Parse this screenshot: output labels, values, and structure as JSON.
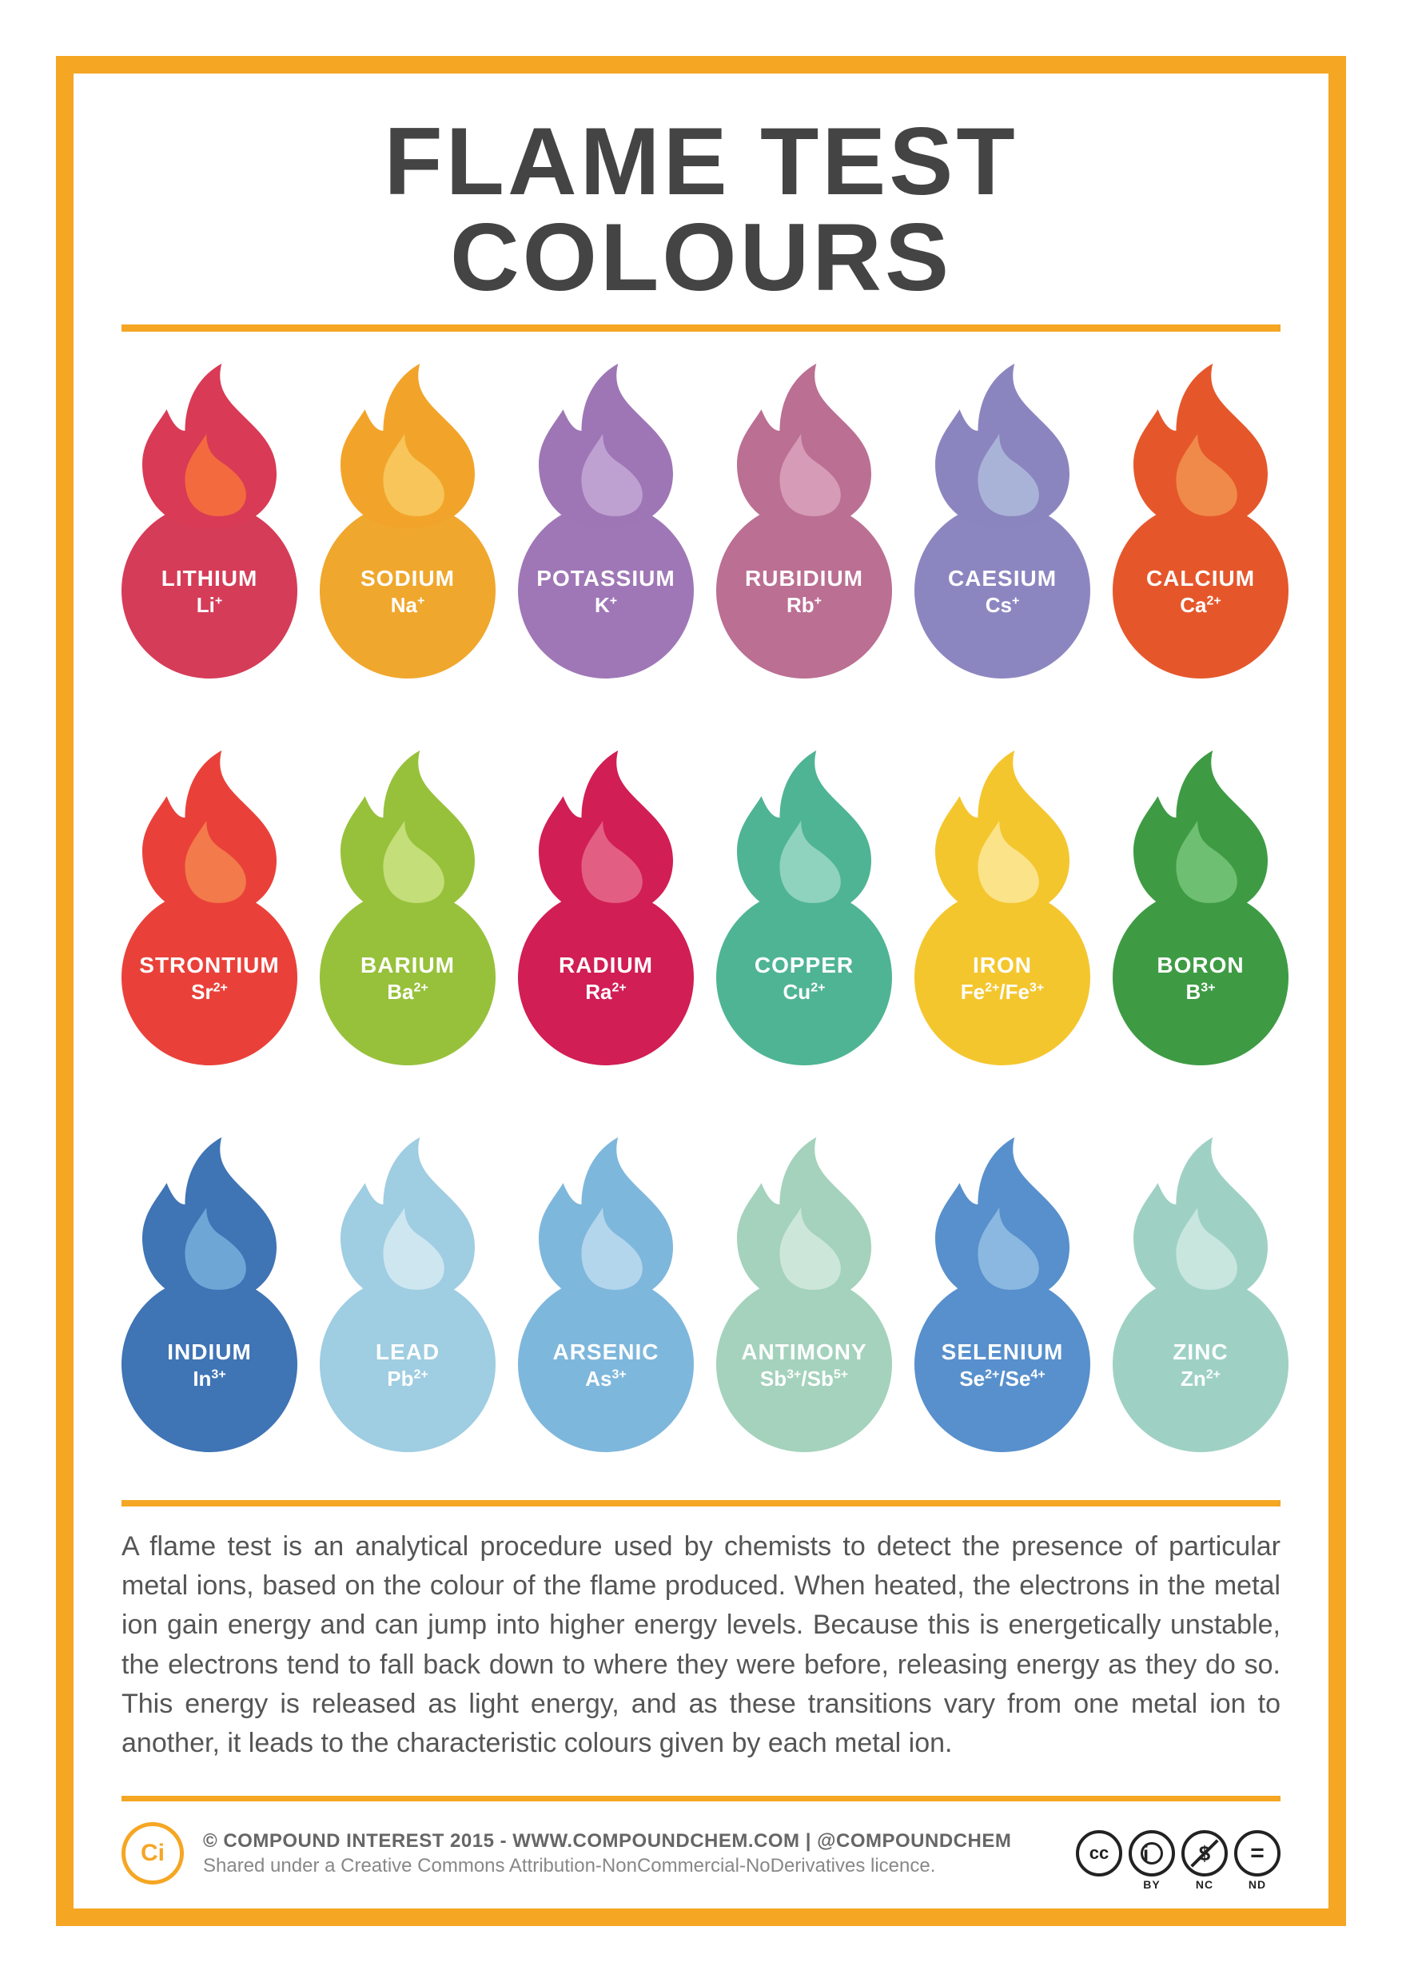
{
  "title": "FLAME TEST COLOURS",
  "border_color": "#f5a623",
  "rule_color": "#f5a623",
  "title_color": "#444444",
  "title_fontsize": 120,
  "grid": {
    "cols": 6,
    "rows": 3
  },
  "elements": [
    {
      "name": "LITHIUM",
      "ion_html": "Li<sup>+</sup>",
      "circle": "#d53c58",
      "flame_outer": "#d93a55",
      "flame_inner": "#f36a3e"
    },
    {
      "name": "SODIUM",
      "ion_html": "Na<sup>+</sup>",
      "circle": "#f0a72d",
      "flame_outer": "#f2a42a",
      "flame_inner": "#f7c55a"
    },
    {
      "name": "POTASSIUM",
      "ion_html": "K<sup>+</sup>",
      "circle": "#9f77b6",
      "flame_outer": "#9e76b6",
      "flame_inner": "#bfa1d1"
    },
    {
      "name": "RUBIDIUM",
      "ion_html": "Rb<sup>+</sup>",
      "circle": "#bb6f93",
      "flame_outer": "#bb6f93",
      "flame_inner": "#d69bb6"
    },
    {
      "name": "CAESIUM",
      "ion_html": "Cs<sup>+</sup>",
      "circle": "#8c86c0",
      "flame_outer": "#8b85bf",
      "flame_inner": "#a9b3d8"
    },
    {
      "name": "CALCIUM",
      "ion_html": "Ca<sup>2+</sup>",
      "circle": "#e5572b",
      "flame_outer": "#e5572b",
      "flame_inner": "#f08a4a"
    },
    {
      "name": "STRONTIUM",
      "ion_html": "Sr<sup>2+</sup>",
      "circle": "#e9413a",
      "flame_outer": "#e9413a",
      "flame_inner": "#f37a4a"
    },
    {
      "name": "BARIUM",
      "ion_html": "Ba<sup>2+</sup>",
      "circle": "#97c13b",
      "flame_outer": "#97c13b",
      "flame_inner": "#c4de7a"
    },
    {
      "name": "RADIUM",
      "ion_html": "Ra<sup>2+</sup>",
      "circle": "#d11e55",
      "flame_outer": "#d11e55",
      "flame_inner": "#e35e83"
    },
    {
      "name": "COPPER",
      "ion_html": "Cu<sup>2+</sup>",
      "circle": "#4fb494",
      "flame_outer": "#4fb494",
      "flame_inner": "#8fd2bd"
    },
    {
      "name": "IRON",
      "ion_html": "Fe<sup>2+</sup>/Fe<sup>3+</sup>",
      "circle": "#f4c62e",
      "flame_outer": "#f4c62e",
      "flame_inner": "#fbe38a"
    },
    {
      "name": "BORON",
      "ion_html": "B<sup>3+</sup>",
      "circle": "#3e9b44",
      "flame_outer": "#3e9b44",
      "flame_inner": "#6fbf72"
    },
    {
      "name": "INDIUM",
      "ion_html": "In<sup>3+</sup>",
      "circle": "#3f74b5",
      "flame_outer": "#3f74b5",
      "flame_inner": "#6ea7d6"
    },
    {
      "name": "LEAD",
      "ion_html": "Pb<sup>2+</sup>",
      "circle": "#9fcde2",
      "flame_outer": "#9fcde2",
      "flame_inner": "#cde6f0"
    },
    {
      "name": "ARSENIC",
      "ion_html": "As<sup>3+</sup>",
      "circle": "#7eb7dc",
      "flame_outer": "#7eb7dc",
      "flame_inner": "#b3d6ec"
    },
    {
      "name": "ANTIMONY",
      "ion_html": "Sb<sup>3+</sup>/Sb<sup>5+</sup>",
      "circle": "#a4d2bc",
      "flame_outer": "#a4d2bc",
      "flame_inner": "#cce6d9"
    },
    {
      "name": "SELENIUM",
      "ion_html": "Se<sup>2+</sup>/Se<sup>4+</sup>",
      "circle": "#5790cc",
      "flame_outer": "#5790cc",
      "flame_inner": "#8ab8e0"
    },
    {
      "name": "ZINC",
      "ion_html": "Zn<sup>2+</sup>",
      "circle": "#9ed1c4",
      "flame_outer": "#9ed1c4",
      "flame_inner": "#c8e6de"
    }
  ],
  "description": "A flame test is an analytical procedure used by chemists to detect the presence of particular metal ions, based on the colour of the flame produced. When heated, the electrons in the metal ion gain energy and can jump into higher energy levels. Because this is energetically unstable, the electrons tend to fall back down to where they were before, releasing energy as they do so. This energy is released as light energy, and as these transitions vary from one metal ion to another, it leads to the characteristic colours given by each metal ion.",
  "footer": {
    "ci_label": "Ci",
    "line1": "© COMPOUND INTEREST 2015 - WWW.COMPOUNDCHEM.COM | @COMPOUNDCHEM",
    "line2": "Shared under a Creative Commons Attribution-NonCommercial-NoDerivatives licence.",
    "cc": [
      "CC",
      "BY",
      "NC",
      "ND"
    ],
    "cc_glyphs": [
      "cc",
      "ⓘ",
      "$",
      "="
    ]
  }
}
